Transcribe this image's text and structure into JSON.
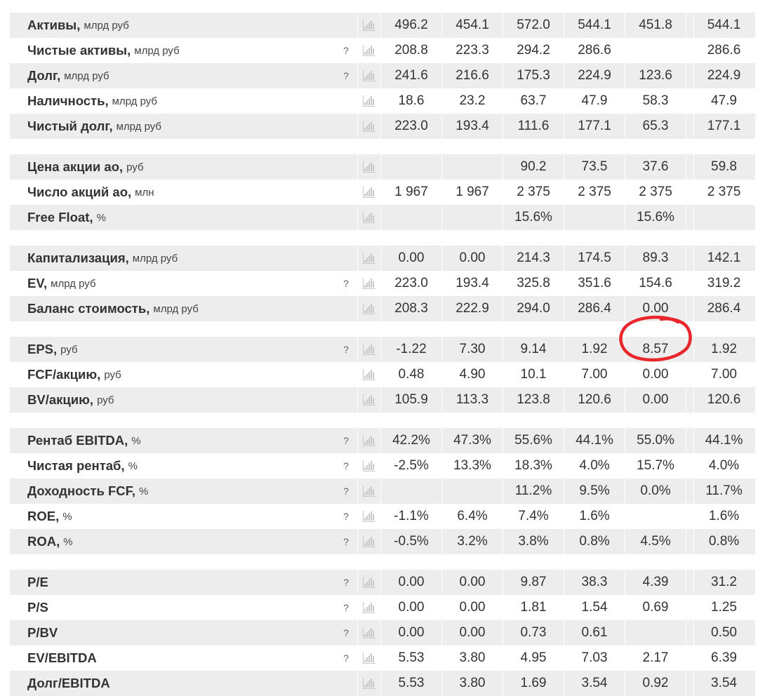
{
  "columns_note": "",
  "groups": [
    {
      "rows": [
        {
          "label": "Активы,",
          "unit": "млрд руб",
          "q": "",
          "values": [
            "496.2",
            "454.1",
            "572.0",
            "544.1",
            "451.8",
            "544.1"
          ]
        },
        {
          "label": "Чистые активы,",
          "unit": "млрд руб",
          "q": "?",
          "values": [
            "208.8",
            "223.3",
            "294.2",
            "286.6",
            "",
            "286.6"
          ]
        },
        {
          "label": "Долг,",
          "unit": "млрд руб",
          "q": "?",
          "values": [
            "241.6",
            "216.6",
            "175.3",
            "224.9",
            "123.6",
            "224.9"
          ]
        },
        {
          "label": "Наличность,",
          "unit": "млрд руб",
          "q": "",
          "values": [
            "18.6",
            "23.2",
            "63.7",
            "47.9",
            "58.3",
            "47.9"
          ]
        },
        {
          "label": "Чистый долг,",
          "unit": "млрд руб",
          "q": "",
          "values": [
            "223.0",
            "193.4",
            "111.6",
            "177.1",
            "65.3",
            "177.1"
          ]
        }
      ]
    },
    {
      "rows": [
        {
          "label": "Цена акции ао,",
          "unit": "руб",
          "q": "",
          "values": [
            "",
            "",
            "90.2",
            "73.5",
            "37.6",
            "59.8"
          ]
        },
        {
          "label": "Число акций ао,",
          "unit": "млн",
          "q": "",
          "values": [
            "1 967",
            "1 967",
            "2 375",
            "2 375",
            "2 375",
            "2 375"
          ]
        },
        {
          "label": "Free Float,",
          "unit": "%",
          "q": "",
          "values": [
            "",
            "",
            "15.6%",
            "",
            "15.6%",
            ""
          ]
        }
      ]
    },
    {
      "rows": [
        {
          "label": "Капитализация,",
          "unit": "млрд руб",
          "q": "",
          "values": [
            "0.00",
            "0.00",
            "214.3",
            "174.5",
            "89.3",
            "142.1"
          ]
        },
        {
          "label": "EV,",
          "unit": "млрд руб",
          "q": "?",
          "values": [
            "223.0",
            "193.4",
            "325.8",
            "351.6",
            "154.6",
            "319.2"
          ]
        },
        {
          "label": "Баланс стоимость,",
          "unit": "млрд руб",
          "q": "",
          "values": [
            "208.3",
            "222.9",
            "294.0",
            "286.4",
            "0.00",
            "286.4"
          ]
        }
      ]
    },
    {
      "rows": [
        {
          "label": "EPS,",
          "unit": "руб",
          "q": "?",
          "values": [
            "-1.22",
            "7.30",
            "9.14",
            "1.92",
            "8.57",
            "1.92"
          ]
        },
        {
          "label": "FCF/акцию,",
          "unit": "руб",
          "q": "",
          "values": [
            "0.48",
            "4.90",
            "10.1",
            "7.00",
            "0.00",
            "7.00"
          ]
        },
        {
          "label": "BV/акцию,",
          "unit": "руб",
          "q": "",
          "values": [
            "105.9",
            "113.3",
            "123.8",
            "120.6",
            "0.00",
            "120.6"
          ]
        }
      ]
    },
    {
      "rows": [
        {
          "label": "Рентаб EBITDA,",
          "unit": "%",
          "q": "?",
          "values": [
            "42.2%",
            "47.3%",
            "55.6%",
            "44.1%",
            "55.0%",
            "44.1%"
          ]
        },
        {
          "label": "Чистая рентаб,",
          "unit": "%",
          "q": "?",
          "values": [
            "-2.5%",
            "13.3%",
            "18.3%",
            "4.0%",
            "15.7%",
            "4.0%"
          ]
        },
        {
          "label": "Доходность FCF,",
          "unit": "%",
          "q": "?",
          "values": [
            "",
            "",
            "11.2%",
            "9.5%",
            "0.0%",
            "11.7%"
          ]
        },
        {
          "label": "ROE,",
          "unit": "%",
          "q": "?",
          "values": [
            "-1.1%",
            "6.4%",
            "7.4%",
            "1.6%",
            "",
            "1.6%"
          ]
        },
        {
          "label": "ROA,",
          "unit": "%",
          "q": "?",
          "values": [
            "-0.5%",
            "3.2%",
            "3.8%",
            "0.8%",
            "4.5%",
            "0.8%"
          ]
        }
      ]
    },
    {
      "rows": [
        {
          "label": "P/E",
          "unit": "",
          "q": "?",
          "values": [
            "0.00",
            "0.00",
            "9.87",
            "38.3",
            "4.39",
            "31.2"
          ]
        },
        {
          "label": "P/S",
          "unit": "",
          "q": "?",
          "values": [
            "0.00",
            "0.00",
            "1.81",
            "1.54",
            "0.69",
            "1.25"
          ]
        },
        {
          "label": "P/BV",
          "unit": "",
          "q": "?",
          "values": [
            "0.00",
            "0.00",
            "0.73",
            "0.61",
            "",
            "0.50"
          ]
        },
        {
          "label": "EV/EBITDA",
          "unit": "",
          "q": "?",
          "values": [
            "5.53",
            "3.80",
            "4.95",
            "7.03",
            "2.17",
            "6.39"
          ]
        },
        {
          "label": "Долг/EBITDA",
          "unit": "",
          "q": "",
          "values": [
            "5.53",
            "3.80",
            "1.69",
            "3.54",
            "0.92",
            "3.54"
          ]
        }
      ]
    }
  ],
  "annotation": {
    "type": "red-circle-highlight",
    "target_row": "EPS,",
    "target_value": "8.57",
    "color": "#e8262c"
  }
}
